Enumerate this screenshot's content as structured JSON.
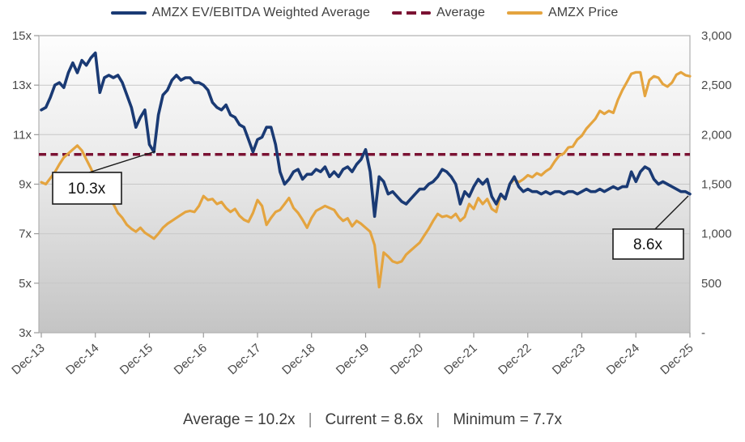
{
  "legend": {
    "items": [
      {
        "label": "AMZX EV/EBITDA Weighted Average",
        "color": "#1a3a74",
        "style": "solid"
      },
      {
        "label": "Average",
        "color": "#7b1233",
        "style": "dashed"
      },
      {
        "label": "AMZX Price",
        "color": "#e4a43f",
        "style": "solid"
      }
    ]
  },
  "chart_data": {
    "type": "line",
    "title": "",
    "x_tick_labels": [
      "Dec-13",
      "Dec-14",
      "Dec-15",
      "Dec-16",
      "Dec-17",
      "Dec-18",
      "Dec-19",
      "Dec-20",
      "Dec-21",
      "Dec-22",
      "Dec-23",
      "Dec-24",
      "Dec-25"
    ],
    "points_per_year": 12,
    "grid": "horizontal",
    "legend_position": "top",
    "left_axis": {
      "range": [
        3,
        15
      ],
      "tick_values": [
        15,
        13,
        11,
        9,
        7,
        5,
        3
      ],
      "tick_labels": [
        "15x",
        "13x",
        "11x",
        "9x",
        "7x",
        "5x",
        "3x"
      ]
    },
    "right_axis": {
      "range": [
        0,
        3000
      ],
      "tick_values": [
        3000,
        2500,
        2000,
        1500,
        1000,
        500,
        0
      ],
      "tick_labels": [
        "3,000",
        "2,500",
        "2,000",
        "1,500",
        "1,000",
        "500",
        "-"
      ]
    },
    "series": [
      {
        "name": "AMZX EV/EBITDA Weighted Average",
        "axis": "left",
        "color": "#1a3a74",
        "style": "solid",
        "values": [
          12.0,
          12.1,
          12.5,
          13.0,
          13.1,
          12.9,
          13.5,
          13.9,
          13.5,
          14.0,
          13.8,
          14.1,
          14.3,
          12.7,
          13.3,
          13.4,
          13.3,
          13.4,
          13.1,
          12.6,
          12.1,
          11.3,
          11.7,
          12.0,
          10.6,
          10.3,
          11.8,
          12.6,
          12.8,
          13.2,
          13.4,
          13.2,
          13.3,
          13.3,
          13.1,
          13.1,
          13.0,
          12.8,
          12.3,
          12.1,
          12.0,
          12.2,
          11.8,
          11.7,
          11.4,
          11.3,
          10.8,
          10.3,
          10.8,
          10.9,
          11.3,
          11.3,
          10.6,
          9.5,
          9.0,
          9.2,
          9.5,
          9.6,
          9.2,
          9.4,
          9.4,
          9.6,
          9.5,
          9.7,
          9.3,
          9.5,
          9.3,
          9.6,
          9.7,
          9.5,
          9.8,
          10.0,
          10.4,
          9.5,
          7.7,
          9.3,
          9.1,
          8.6,
          8.7,
          8.5,
          8.3,
          8.2,
          8.4,
          8.6,
          8.8,
          8.8,
          9.0,
          9.1,
          9.3,
          9.6,
          9.5,
          9.3,
          9.0,
          8.2,
          8.7,
          8.5,
          8.9,
          9.2,
          9.0,
          9.2,
          8.5,
          8.2,
          8.6,
          8.4,
          9.0,
          9.3,
          8.9,
          8.7,
          8.8,
          8.7,
          8.7,
          8.6,
          8.7,
          8.6,
          8.7,
          8.7,
          8.6,
          8.7,
          8.7,
          8.6,
          8.7,
          8.8,
          8.7,
          8.7,
          8.8,
          8.7,
          8.8,
          8.9,
          8.8,
          8.9,
          8.9,
          9.5,
          9.1,
          9.5,
          9.7,
          9.6,
          9.2,
          9.0,
          9.1,
          9.0,
          8.9,
          8.8,
          8.7,
          8.7,
          8.6
        ]
      },
      {
        "name": "Average",
        "axis": "left",
        "color": "#7b1233",
        "style": "dashed",
        "value": 10.2
      },
      {
        "name": "AMZX Price",
        "axis": "right",
        "color": "#e4a43f",
        "style": "solid",
        "values": [
          1520,
          1500,
          1560,
          1620,
          1700,
          1770,
          1810,
          1850,
          1890,
          1840,
          1750,
          1660,
          1560,
          1480,
          1400,
          1360,
          1300,
          1210,
          1160,
          1090,
          1050,
          1020,
          1060,
          1010,
          980,
          950,
          1000,
          1060,
          1100,
          1130,
          1160,
          1190,
          1220,
          1230,
          1220,
          1280,
          1380,
          1340,
          1350,
          1300,
          1320,
          1260,
          1220,
          1250,
          1180,
          1140,
          1120,
          1210,
          1340,
          1280,
          1090,
          1160,
          1220,
          1240,
          1300,
          1360,
          1260,
          1210,
          1140,
          1060,
          1160,
          1230,
          1255,
          1280,
          1260,
          1240,
          1175,
          1130,
          1155,
          1075,
          1130,
          1100,
          1060,
          1020,
          885,
          460,
          810,
          770,
          720,
          705,
          720,
          790,
          830,
          870,
          910,
          980,
          1050,
          1130,
          1200,
          1170,
          1180,
          1160,
          1200,
          1130,
          1170,
          1300,
          1250,
          1360,
          1300,
          1350,
          1250,
          1220,
          1400,
          1350,
          1500,
          1550,
          1520,
          1550,
          1590,
          1570,
          1610,
          1590,
          1630,
          1660,
          1730,
          1790,
          1810,
          1870,
          1880,
          1950,
          1990,
          2060,
          2110,
          2160,
          2240,
          2210,
          2240,
          2220,
          2350,
          2450,
          2530,
          2615,
          2630,
          2630,
          2390,
          2550,
          2590,
          2575,
          2510,
          2485,
          2525,
          2605,
          2630,
          2600,
          2590
        ]
      }
    ],
    "annotations": [
      {
        "label": "10.3x",
        "series": "AMZX EV/EBITDA Weighted Average",
        "x_label": "Jan-16"
      },
      {
        "label": "8.6x",
        "series": "AMZX EV/EBITDA Weighted Average",
        "x_label": "Dec-25"
      }
    ]
  },
  "footer": {
    "separator": "|",
    "items": [
      "Average = 10.2x",
      "Current = 8.6x",
      "Minimum = 7.7x"
    ]
  },
  "colors": {
    "ev_ebitda_line": "#1a3a74",
    "price_line": "#e4a43f",
    "average_line": "#7b1233",
    "grid": "#c7c7c7",
    "plot_border": "#b0b0b0",
    "axis_text": "#4a4a4a",
    "plot_gradient_top": "#fdfdfd",
    "plot_gradient_bottom": "#c4c4c4"
  }
}
